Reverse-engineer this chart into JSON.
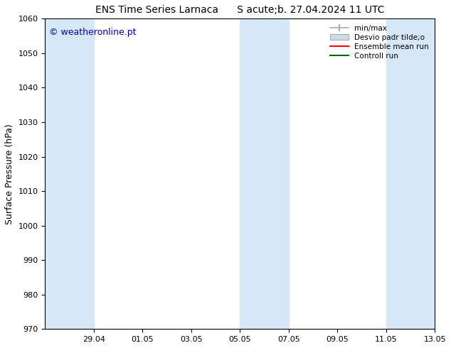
{
  "title_left": "ENS Time Series Larnaca",
  "title_right": "S acute;b. 27.04.2024 11 UTC",
  "ylabel": "Surface Pressure (hPa)",
  "ylim": [
    970,
    1060
  ],
  "yticks": [
    970,
    980,
    990,
    1000,
    1010,
    1020,
    1030,
    1040,
    1050,
    1060
  ],
  "xlim_start": 0,
  "xlim_end": 16,
  "xtick_positions": [
    2,
    4,
    6,
    8,
    10,
    12,
    14,
    16
  ],
  "xtick_labels": [
    "29.04",
    "01.05",
    "03.05",
    "05.05",
    "07.05",
    "09.05",
    "11.05",
    "13.05"
  ],
  "shaded_bands": [
    {
      "x_start": 0.0,
      "x_end": 2.0
    },
    {
      "x_start": 8.0,
      "x_end": 10.0
    },
    {
      "x_start": 14.0,
      "x_end": 16.0
    }
  ],
  "shaded_color": "#d6e8f7",
  "watermark_text": "© weatheronline.pt",
  "watermark_color": "#0000cc",
  "watermark_fontsize": 9,
  "background_color": "#ffffff",
  "legend_items": [
    {
      "label": "min/max",
      "color": "#aaaaaa",
      "style": "errorbar"
    },
    {
      "label": "Desvio padr tilde;o",
      "color": "#ccdde8",
      "style": "box"
    },
    {
      "label": "Ensemble mean run",
      "color": "#ff0000",
      "style": "line"
    },
    {
      "label": "Controll run",
      "color": "#006600",
      "style": "line"
    }
  ],
  "tick_color": "#000000",
  "axis_color": "#000000",
  "font_color": "#000000"
}
